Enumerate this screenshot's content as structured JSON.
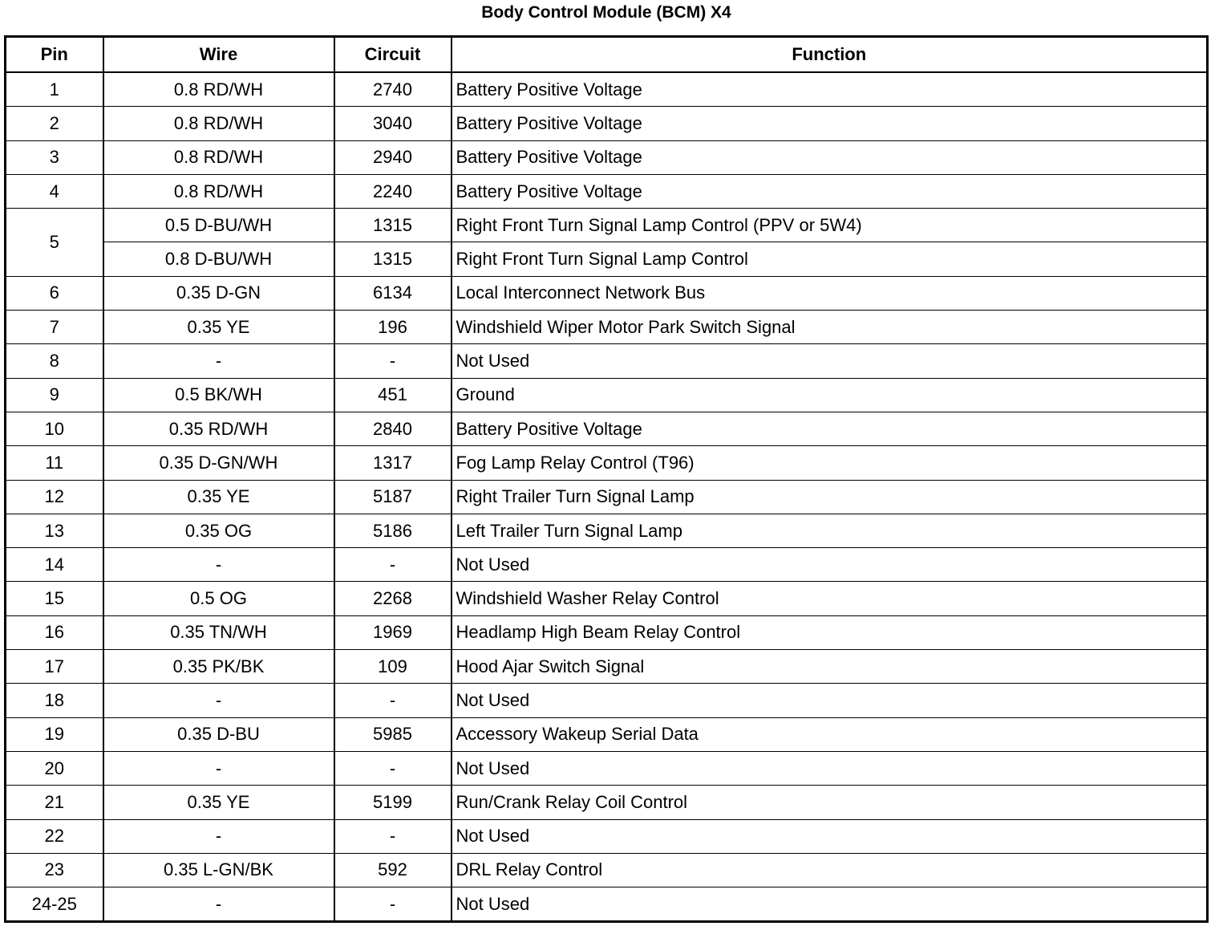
{
  "title": "Body Control Module (BCM) X4",
  "headers": [
    "Pin",
    "Wire",
    "Circuit",
    "Function"
  ],
  "rows": [
    {
      "pin": "1",
      "wires": [
        [
          "0.8 RD/WH",
          "2740",
          "Battery Positive Voltage"
        ]
      ]
    },
    {
      "pin": "2",
      "wires": [
        [
          "0.8 RD/WH",
          "3040",
          "Battery Positive Voltage"
        ]
      ]
    },
    {
      "pin": "3",
      "wires": [
        [
          "0.8 RD/WH",
          "2940",
          "Battery Positive Voltage"
        ]
      ]
    },
    {
      "pin": "4",
      "wires": [
        [
          "0.8 RD/WH",
          "2240",
          "Battery Positive Voltage"
        ]
      ]
    },
    {
      "pin": "5",
      "wires": [
        [
          "0.5 D-BU/WH",
          "1315",
          "Right Front Turn Signal Lamp Control (PPV or 5W4)"
        ],
        [
          "0.8 D-BU/WH",
          "1315",
          "Right Front Turn Signal Lamp Control"
        ]
      ]
    },
    {
      "pin": "6",
      "wires": [
        [
          "0.35 D-GN",
          "6134",
          "Local Interconnect Network Bus"
        ]
      ]
    },
    {
      "pin": "7",
      "wires": [
        [
          "0.35 YE",
          "196",
          "Windshield Wiper Motor Park Switch Signal"
        ]
      ]
    },
    {
      "pin": "8",
      "wires": [
        [
          "-",
          "-",
          "Not Used"
        ]
      ]
    },
    {
      "pin": "9",
      "wires": [
        [
          "0.5 BK/WH",
          "451",
          "Ground"
        ]
      ]
    },
    {
      "pin": "10",
      "wires": [
        [
          "0.35 RD/WH",
          "2840",
          "Battery Positive Voltage"
        ]
      ]
    },
    {
      "pin": "11",
      "wires": [
        [
          "0.35 D-GN/WH",
          "1317",
          "Fog Lamp Relay Control (T96)"
        ]
      ]
    },
    {
      "pin": "12",
      "wires": [
        [
          "0.35 YE",
          "5187",
          "Right Trailer Turn Signal Lamp"
        ]
      ]
    },
    {
      "pin": "13",
      "wires": [
        [
          "0.35 OG",
          "5186",
          "Left Trailer Turn Signal Lamp"
        ]
      ]
    },
    {
      "pin": "14",
      "wires": [
        [
          "-",
          "-",
          "Not Used"
        ]
      ]
    },
    {
      "pin": "15",
      "wires": [
        [
          "0.5 OG",
          "2268",
          "Windshield Washer Relay Control"
        ]
      ]
    },
    {
      "pin": "16",
      "wires": [
        [
          "0.35 TN/WH",
          "1969",
          "Headlamp High Beam Relay Control"
        ]
      ]
    },
    {
      "pin": "17",
      "wires": [
        [
          "0.35 PK/BK",
          "109",
          "Hood Ajar Switch Signal"
        ]
      ]
    },
    {
      "pin": "18",
      "wires": [
        [
          "-",
          "-",
          "Not Used"
        ]
      ]
    },
    {
      "pin": "19",
      "wires": [
        [
          "0.35 D-BU",
          "5985",
          "Accessory Wakeup Serial Data"
        ]
      ]
    },
    {
      "pin": "20",
      "wires": [
        [
          "-",
          "-",
          "Not Used"
        ]
      ]
    },
    {
      "pin": "21",
      "wires": [
        [
          "0.35 YE",
          "5199",
          "Run/Crank Relay Coil Control"
        ]
      ]
    },
    {
      "pin": "22",
      "wires": [
        [
          "-",
          "-",
          "Not Used"
        ]
      ]
    },
    {
      "pin": "23",
      "wires": [
        [
          "0.35 L-GN/BK",
          "592",
          "DRL Relay Control"
        ]
      ]
    },
    {
      "pin": "24-25",
      "wires": [
        [
          "-",
          "-",
          "Not Used"
        ]
      ]
    }
  ]
}
